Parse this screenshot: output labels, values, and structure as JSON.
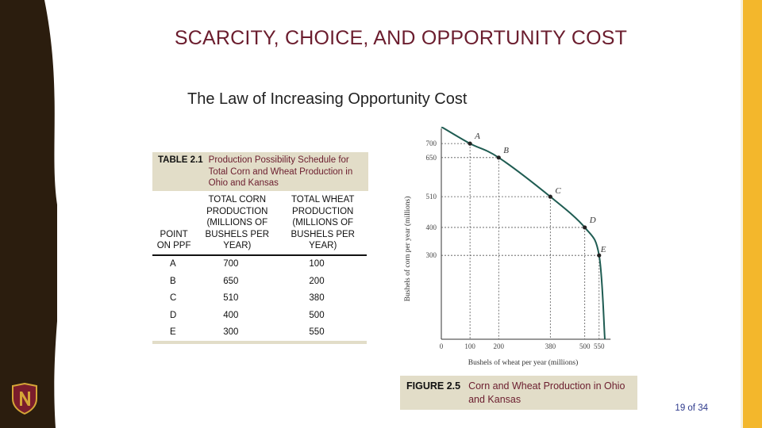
{
  "slide": {
    "title": "SCARCITY, CHOICE, AND OPPORTUNITY COST",
    "subtitle": "The Law of Increasing Opportunity Cost",
    "page_number": "19 of 34"
  },
  "table": {
    "number": "TABLE 2.1",
    "caption": "Production Possibility Schedule for Total Corn and Wheat Production in Ohio and Kansas",
    "headers": [
      "POINT ON PPF",
      "TOTAL CORN PRODUCTION (MILLIONS OF BUSHELS PER YEAR)",
      "TOTAL WHEAT PRODUCTION (MILLIONS OF BUSHELS PER YEAR)"
    ],
    "rows": [
      [
        "A",
        "700",
        "100"
      ],
      [
        "B",
        "650",
        "200"
      ],
      [
        "C",
        "510",
        "380"
      ],
      [
        "D",
        "400",
        "500"
      ],
      [
        "E",
        "300",
        "550"
      ]
    ]
  },
  "figure": {
    "number": "FIGURE 2.5",
    "caption": "Corn and Wheat Production in Ohio and Kansas"
  },
  "colors": {
    "title": "#6b1d2e",
    "curve": "#1f5c52",
    "left_band": "#2b1d0e",
    "right_band": "#f3b72c",
    "caption_bg": "#e2ddc8"
  },
  "chart_data": {
    "type": "line",
    "xlabel": "Bushels of wheat per year (millions)",
    "ylabel": "Bushels of corn per year (millions)",
    "x_ticks": [
      0,
      100,
      200,
      380,
      500,
      550
    ],
    "y_ticks": [
      300,
      400,
      510,
      650,
      700
    ],
    "points": [
      {
        "label": "A",
        "x": 100,
        "y": 700
      },
      {
        "label": "B",
        "x": 200,
        "y": 650
      },
      {
        "label": "C",
        "x": 380,
        "y": 510
      },
      {
        "label": "D",
        "x": 500,
        "y": 400
      },
      {
        "label": "E",
        "x": 550,
        "y": 300
      }
    ],
    "curve_start": {
      "x": 0,
      "y": 760
    },
    "curve_end": {
      "x": 570,
      "y": 0
    }
  }
}
